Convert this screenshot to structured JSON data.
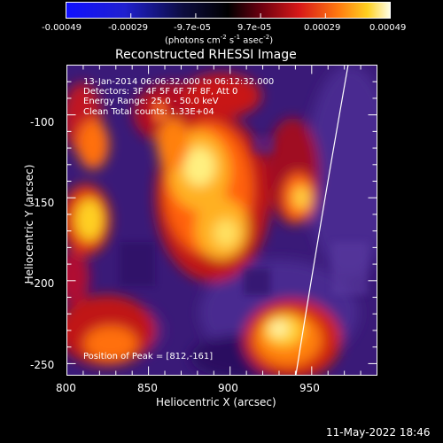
{
  "colorbar": {
    "tick_labels": [
      "-0.00049",
      "-0.00029",
      "-9.7e-05",
      "9.7e-05",
      "0.00029",
      "0.00049"
    ],
    "units_text": "(photons cm",
    "units_exp1": "-2",
    "units_s": " s",
    "units_exp2": "-1",
    "units_asec": " asec",
    "units_exp3": "-2",
    "units_close": ")"
  },
  "title": "Reconstructed RHESSI Image",
  "annotations": {
    "time_range": "13-Jan-2014 06:06:32.000 to 06:12:32.000",
    "detectors": "Detectors: 3F 4F 5F 6F 7F 8F, Att 0",
    "energy_range": "Energy Range: 25.0 - 50.0 keV",
    "clean": "Clean    Total counts: 1.33E+04",
    "peak": "Position of Peak = [812,-161]"
  },
  "axes": {
    "x_title": "Heliocentric X (arcsec)",
    "y_title": "Heliocentric Y (arcsec)",
    "x_tick_labels": [
      "800",
      "850",
      "900",
      "950"
    ],
    "y_tick_labels": [
      "-100",
      "-150",
      "-200",
      "-250"
    ],
    "x_ticks": [
      800,
      850,
      900,
      950
    ],
    "y_ticks": [
      -100,
      -150,
      -200,
      -250
    ],
    "xlim": [
      800,
      990
    ],
    "ylim": [
      -257,
      -70
    ]
  },
  "footer_timestamp": "11-May-2022 18:46",
  "colors": {
    "background": "#000000",
    "foreground": "#ffffff",
    "colorbar_low": "#0000ff",
    "colorbar_mid": "#000000",
    "colorbar_high": "#ffffff"
  }
}
